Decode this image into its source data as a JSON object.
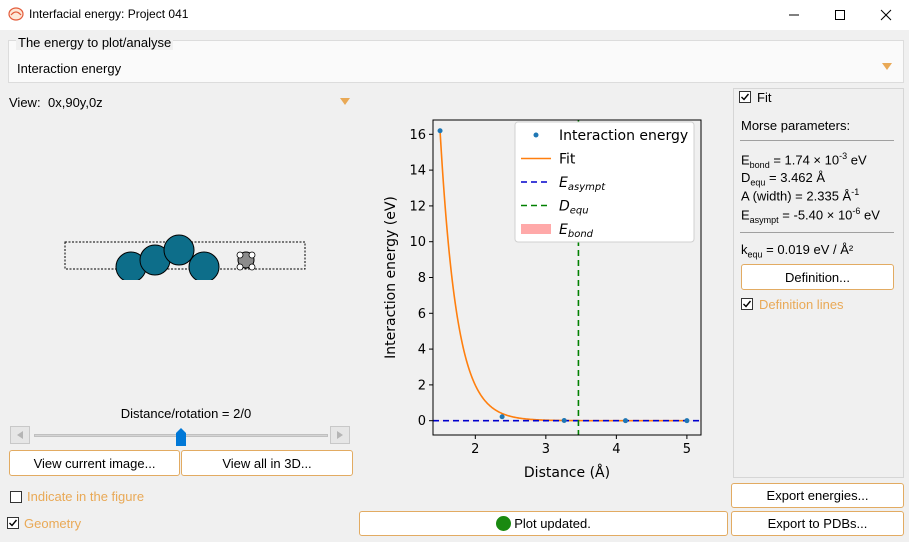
{
  "window": {
    "title": "Interfacial energy: Project 041"
  },
  "energy_group": {
    "title": "The energy to plot/analyse",
    "selected": "Interaction energy"
  },
  "view": {
    "label": "View:",
    "value": "0x,90y,0z"
  },
  "slider": {
    "label": "Distance/rotation = 2/0",
    "position": 0.5
  },
  "buttons": {
    "view_current": "View current image...",
    "view_all_3d": "View all in 3D...",
    "definition": "Definition...",
    "export_energies": "Export energies...",
    "export_pdbs": "Export to PDBs..."
  },
  "checkboxes": {
    "indicate": {
      "label": "Indicate in the figure",
      "checked": false
    },
    "geometry": {
      "label": "Geometry",
      "checked": true
    },
    "fit": {
      "label": "Fit",
      "checked": true
    },
    "definition_lines": {
      "label": "Definition lines",
      "checked": true
    }
  },
  "morse": {
    "title": "Morse parameters:",
    "e_bond": {
      "name": "E",
      "sub": "bond",
      "value": " = 1.74 × 10",
      "exp": "-3",
      "unit": " eV"
    },
    "d_equ": {
      "name": "D",
      "sub": "equ",
      "value": " = 3.462 Å"
    },
    "a_width": {
      "value": "A (width) = 2.335 Å",
      "exp": "-1"
    },
    "e_asympt": {
      "name": "E",
      "sub": "asympt",
      "value": " = -5.40 × 10",
      "exp": "-6",
      "unit": " eV"
    },
    "k_equ": {
      "name": "k",
      "sub": "equ",
      "value": " = 0.019 eV / Å²"
    }
  },
  "status": {
    "text": "Plot updated.",
    "color": "#1a8a10"
  },
  "colors": {
    "accent": "#e2ab62",
    "fit": "#ff7f0e",
    "points": "#1f77b4",
    "asympt": "#0000cc",
    "equ": "#008000",
    "bond_fill": "#ff9a9a",
    "atom_large": "#0d6e8a",
    "atom_small": "#8c8c8c"
  },
  "chart_data": {
    "type": "line",
    "xlabel": "Distance (Å)",
    "ylabel": "Interaction energy (eV)",
    "xlim": [
      1.4,
      5.2
    ],
    "ylim": [
      -0.8,
      16.8
    ],
    "xticks": [
      2,
      3,
      4,
      5
    ],
    "yticks": [
      0,
      2,
      4,
      6,
      8,
      10,
      12,
      14,
      16
    ],
    "grid": false,
    "legend_position": "top-right",
    "series": [
      {
        "name": "Interaction energy",
        "kind": "scatter",
        "x": [
          1.5,
          2.38,
          3.26,
          4.13,
          5.0
        ],
        "y": [
          16.2,
          0.22,
          0.01,
          0.0,
          0.0
        ]
      },
      {
        "name": "Fit",
        "kind": "line",
        "morse": {
          "E_bond": 0.00174,
          "D_equ": 3.462,
          "A": 2.335,
          "E_asympt": -5.4e-06
        }
      },
      {
        "name": "E_asympt",
        "kind": "hline",
        "y": 0.0
      },
      {
        "name": "D_equ",
        "kind": "vline",
        "x": 3.462
      },
      {
        "name": "E_bond",
        "kind": "area"
      }
    ],
    "legend": [
      {
        "label": "Interaction energy",
        "math": false
      },
      {
        "label": "Fit",
        "math": false
      },
      {
        "label": "E",
        "sub": "asympt",
        "math": true
      },
      {
        "label": "D",
        "sub": "equ",
        "math": true
      },
      {
        "label": "E",
        "sub": "bond",
        "math": true
      }
    ]
  }
}
